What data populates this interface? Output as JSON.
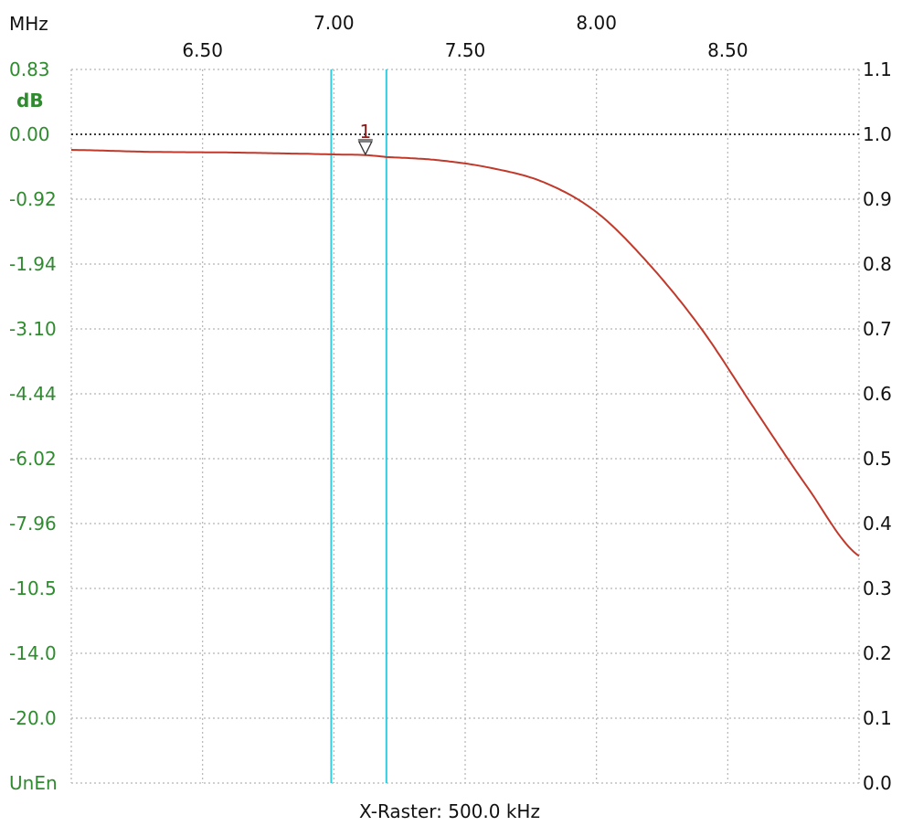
{
  "chart_data": {
    "type": "line",
    "title": "",
    "x_unit": "MHz",
    "y_unit": "dB",
    "x_tick_labels_row1": [
      "7.00",
      "8.00"
    ],
    "x_tick_labels_row1_values": [
      7.0,
      8.0
    ],
    "x_tick_labels_row2": [
      "6.50",
      "7.50",
      "8.50"
    ],
    "x_tick_labels_row2_values": [
      6.5,
      7.5,
      8.5
    ],
    "xlim": [
      6.0,
      9.0
    ],
    "x_grid_values": [
      6.5,
      7.0,
      7.5,
      8.0,
      8.5
    ],
    "left_axis_labels": [
      "0.83",
      "0.00",
      "-0.92",
      "-1.94",
      "-3.10",
      "-4.44",
      "-6.02",
      "-7.96",
      "-10.5",
      "-14.0",
      "-20.0",
      "UnEn"
    ],
    "right_axis_labels": [
      "1.1",
      "1.0",
      "0.9",
      "0.8",
      "0.7",
      "0.6",
      "0.5",
      "0.4",
      "0.3",
      "0.2",
      "0.1",
      "0.0"
    ],
    "right_axis_values": [
      1.1,
      1.0,
      0.9,
      0.8,
      0.7,
      0.6,
      0.5,
      0.4,
      0.3,
      0.2,
      0.1,
      0.0
    ],
    "ylim": [
      0.0,
      1.1
    ],
    "reference_line_value": 1.0,
    "grid": true,
    "cursor_lines_mhz": [
      6.99,
      7.2
    ],
    "marker": {
      "label": "1",
      "x": 7.12,
      "y": 0.969
    },
    "series": [
      {
        "color": "#c0392b",
        "x": [
          6.0,
          6.3,
          6.6,
          6.9,
          7.0,
          7.12,
          7.2,
          7.4,
          7.6,
          7.8,
          8.0,
          8.2,
          8.4,
          8.6,
          8.8,
          9.0
        ],
        "y": [
          0.976,
          0.973,
          0.972,
          0.97,
          0.969,
          0.968,
          0.965,
          0.96,
          0.948,
          0.926,
          0.88,
          0.8,
          0.7,
          0.578,
          0.458,
          0.35
        ]
      }
    ],
    "footer_text": "X-Raster: 500.0 kHz"
  },
  "colors": {
    "grid": "#b5b5b5",
    "curve": "#c0392b",
    "cursor": "#33ccdd",
    "left_labels": "#2e8b2e",
    "dark_text": "#111111",
    "marker": "#8b1a1a"
  }
}
